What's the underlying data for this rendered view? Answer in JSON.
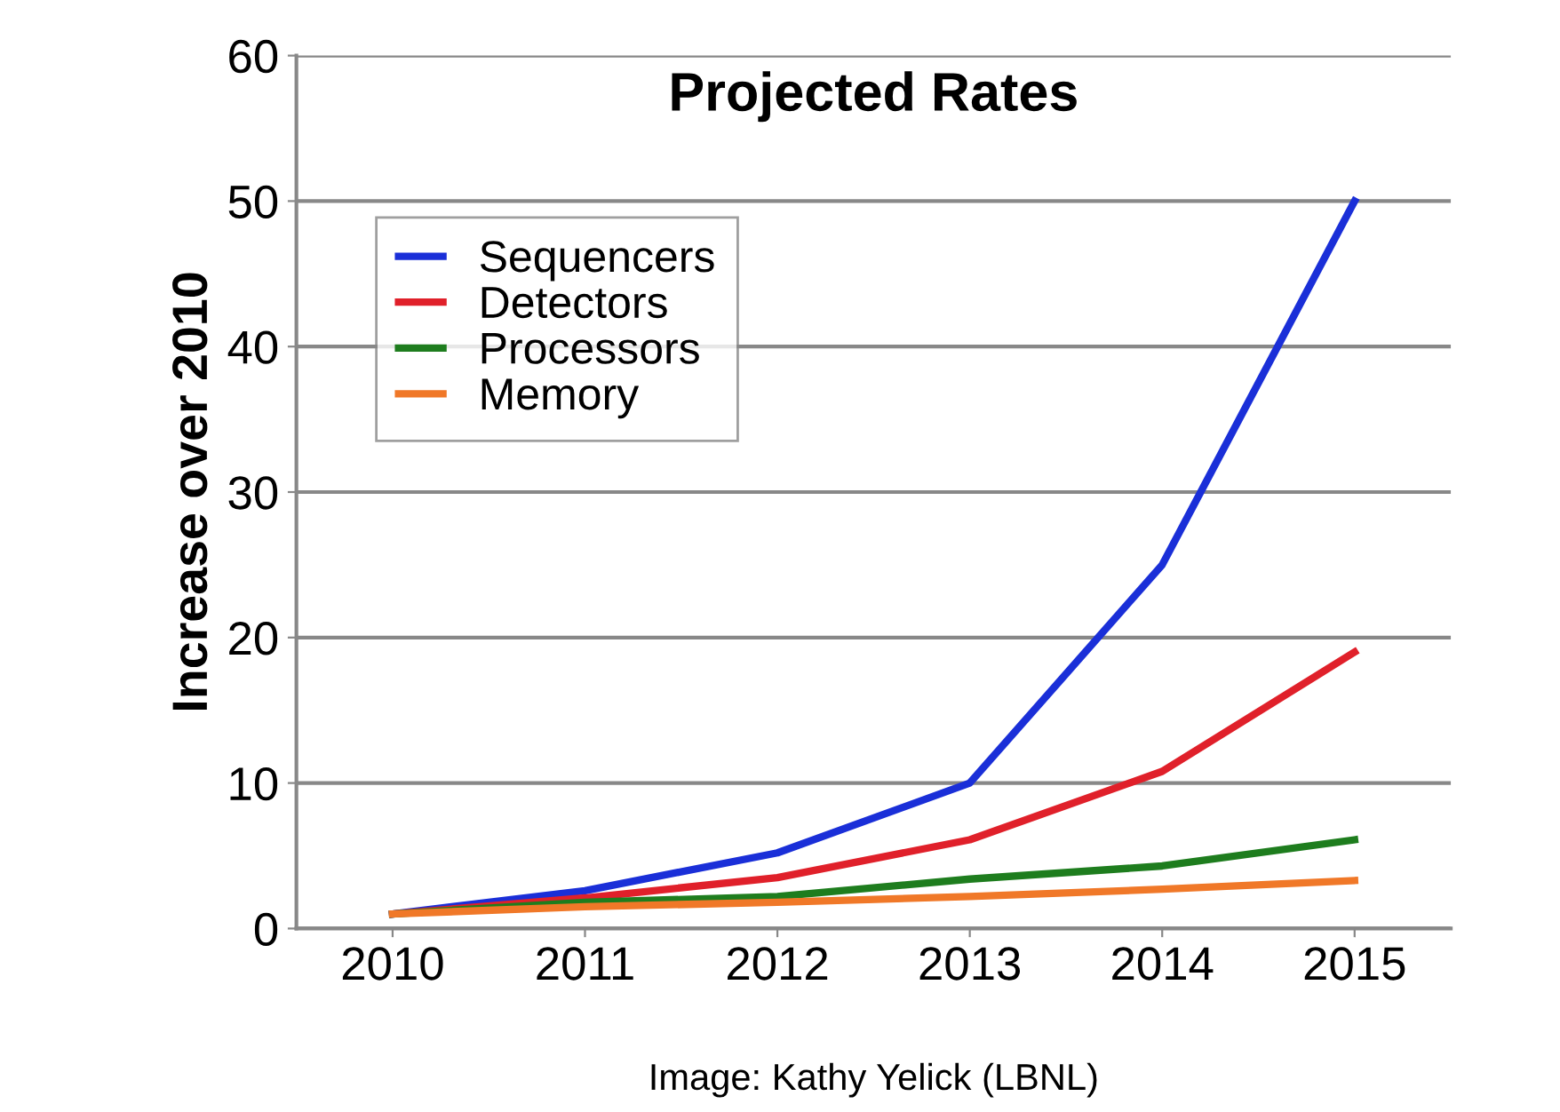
{
  "chart_data": {
    "type": "line",
    "title": "Projected Rates",
    "ylabel": "Increase over 2010",
    "categories": [
      "2010",
      "2011",
      "2012",
      "2013",
      "2014",
      "2015"
    ],
    "series": [
      {
        "name": "Sequencers",
        "color": "#1a2fd8",
        "values": [
          1,
          2.6,
          5.2,
          10,
          25,
          50
        ]
      },
      {
        "name": "Detectors",
        "color": "#e0202a",
        "values": [
          1,
          2.1,
          3.5,
          6.1,
          10.8,
          19
        ]
      },
      {
        "name": "Processors",
        "color": "#1e7d1e",
        "values": [
          1,
          1.8,
          2.2,
          3.4,
          4.3,
          6.1
        ]
      },
      {
        "name": "Memory",
        "color": "#f07828",
        "values": [
          1,
          1.5,
          1.8,
          2.2,
          2.7,
          3.3
        ]
      }
    ],
    "ylim": [
      0,
      60
    ],
    "yticks": [
      0,
      10,
      20,
      30,
      40,
      50,
      60
    ],
    "grid": "y",
    "legend": "top left",
    "marker": "none",
    "line_style": "solid",
    "annotations": [
      "Image: Kathy Yelick (LBNL)"
    ]
  }
}
